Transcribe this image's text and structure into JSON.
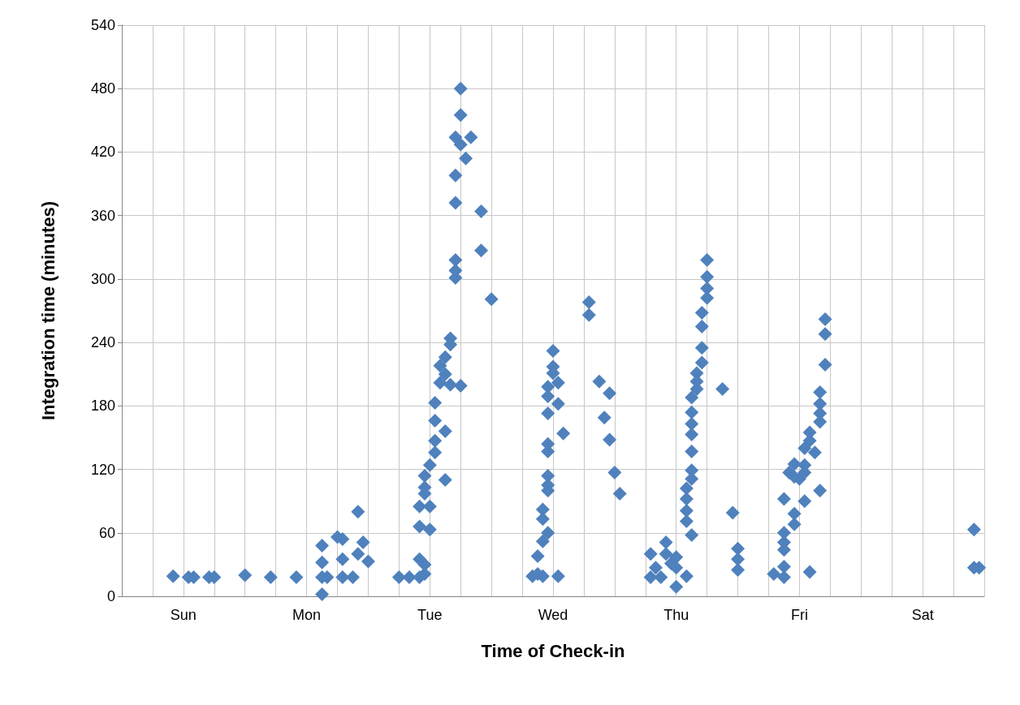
{
  "chart_data": {
    "type": "scatter",
    "xlabel": "Time of Check-in",
    "ylabel": "Integration time (minutes)",
    "color": "#4f81bd",
    "marker": "diamond",
    "grid": true,
    "ylim": [
      0,
      540
    ],
    "yticks": [
      0,
      60,
      120,
      180,
      240,
      300,
      360,
      420,
      480,
      540
    ],
    "categories": [
      null,
      null,
      null,
      null,
      null,
      null,
      null,
      null,
      null,
      null,
      null,
      null,
      "Sun",
      null,
      null,
      null,
      null,
      null,
      null,
      null,
      null,
      null,
      null,
      null,
      null,
      null,
      null,
      null,
      null,
      null,
      null,
      null,
      null,
      null,
      null,
      null,
      "Mon",
      null,
      null,
      null,
      null,
      null,
      null,
      null,
      null,
      null,
      null,
      null,
      null,
      null,
      null,
      null,
      null,
      null,
      null,
      null,
      null,
      null,
      null,
      null,
      "Tue",
      null,
      null,
      null,
      null,
      null,
      null,
      null,
      null,
      null,
      null,
      null,
      null,
      null,
      null,
      null,
      null,
      null,
      null,
      null,
      null,
      null,
      null,
      null,
      "Wed",
      null,
      null,
      null,
      null,
      null,
      null,
      null,
      null,
      null,
      null,
      null,
      null,
      null,
      null,
      null,
      null,
      null,
      null,
      null,
      null,
      null,
      null,
      null,
      "Thu",
      null,
      null,
      null,
      null,
      null,
      null,
      null,
      null,
      null,
      null,
      null,
      null,
      null,
      null,
      null,
      null,
      null,
      null,
      null,
      null,
      null,
      null,
      null,
      "Fri",
      null,
      null,
      null,
      null,
      null,
      null,
      null,
      null,
      null,
      null,
      null,
      null,
      null,
      null,
      null,
      null,
      null,
      null,
      null,
      null,
      null,
      null,
      null,
      "Sat",
      null,
      null,
      null,
      null,
      null,
      null,
      null,
      null,
      null,
      null,
      null,
      null
    ],
    "series": [
      {
        "values": [
          null,
          null,
          null,
          null,
          null,
          null,
          null,
          null,
          null,
          null,
          19,
          null,
          null,
          18,
          18,
          null,
          null,
          18,
          18,
          null,
          null,
          null,
          null,
          null,
          20,
          null,
          null,
          null,
          null,
          18,
          null,
          null,
          null,
          null,
          18,
          null,
          null,
          null,
          null,
          48,
          18,
          null,
          56,
          54,
          null,
          18,
          80,
          51,
          33,
          null,
          null,
          null,
          null,
          null,
          18,
          null,
          18,
          null,
          85,
          114,
          124,
          183,
          218,
          226,
          244,
          434,
          480,
          414,
          434,
          null,
          364,
          null,
          281,
          null,
          null,
          null,
          null,
          null,
          null,
          null,
          19,
          38,
          82,
          198,
          232,
          202,
          154,
          null,
          null,
          null,
          null,
          278,
          null,
          203,
          169,
          192,
          117,
          97,
          null,
          null,
          null,
          null,
          null,
          40,
          27,
          18,
          51,
          31,
          37,
          null,
          102,
          188,
          211,
          268,
          318,
          null,
          null,
          196,
          null,
          79,
          45,
          null,
          null,
          null,
          null,
          null,
          null,
          21,
          null,
          92,
          117,
          125,
          111,
          140,
          155,
          136,
          193,
          262,
          null,
          null,
          null,
          null,
          null,
          null,
          null,
          null,
          null,
          null,
          null,
          null,
          null,
          null,
          null,
          null,
          null,
          null,
          null,
          null,
          null,
          null,
          null,
          null,
          null,
          null,
          null,
          null,
          63,
          27,
          null
        ]
      },
      {
        "values": [
          null,
          null,
          null,
          null,
          null,
          null,
          null,
          null,
          null,
          null,
          null,
          null,
          null,
          null,
          null,
          null,
          null,
          null,
          null,
          null,
          null,
          null,
          null,
          null,
          null,
          null,
          null,
          null,
          null,
          null,
          null,
          null,
          null,
          null,
          null,
          null,
          null,
          null,
          null,
          32,
          null,
          null,
          null,
          35,
          null,
          null,
          40,
          null,
          null,
          null,
          null,
          null,
          null,
          null,
          null,
          null,
          null,
          null,
          66,
          103,
          85,
          166,
          202,
          210,
          238,
          398,
          455,
          null,
          null,
          null,
          327,
          null,
          null,
          null,
          null,
          null,
          null,
          null,
          null,
          null,
          null,
          21,
          73,
          189,
          217,
          182,
          null,
          null,
          null,
          null,
          null,
          266,
          null,
          null,
          null,
          148,
          null,
          null,
          null,
          null,
          null,
          null,
          null,
          18,
          null,
          null,
          40,
          null,
          27,
          null,
          92,
          174,
          203,
          255,
          302,
          null,
          null,
          null,
          null,
          null,
          35,
          null,
          null,
          null,
          null,
          null,
          null,
          null,
          null,
          60,
          null,
          113,
          null,
          124,
          147,
          null,
          182,
          248,
          null,
          null,
          null,
          null,
          null,
          null,
          null,
          null,
          null,
          null,
          null,
          null,
          null,
          null,
          null,
          null,
          null,
          null,
          null,
          null,
          null,
          null,
          null,
          null,
          null,
          null,
          null,
          null,
          27,
          null,
          null
        ]
      },
      {
        "values": [
          null,
          null,
          null,
          null,
          null,
          null,
          null,
          null,
          null,
          null,
          null,
          null,
          null,
          null,
          null,
          null,
          null,
          null,
          null,
          null,
          null,
          null,
          null,
          null,
          null,
          null,
          null,
          null,
          null,
          null,
          null,
          null,
          null,
          null,
          null,
          null,
          null,
          null,
          null,
          18,
          null,
          null,
          null,
          18,
          null,
          null,
          null,
          null,
          null,
          null,
          null,
          null,
          null,
          null,
          null,
          null,
          null,
          null,
          35,
          97,
          63,
          147,
          null,
          156,
          200,
          372,
          427,
          null,
          null,
          null,
          null,
          null,
          null,
          null,
          null,
          null,
          null,
          null,
          null,
          null,
          null,
          null,
          52,
          173,
          211,
          19,
          null,
          null,
          null,
          null,
          null,
          null,
          null,
          null,
          null,
          null,
          null,
          null,
          null,
          null,
          null,
          null,
          null,
          null,
          null,
          null,
          null,
          null,
          9,
          null,
          81,
          163,
          196,
          235,
          291,
          null,
          null,
          null,
          null,
          null,
          25,
          null,
          null,
          null,
          null,
          null,
          null,
          null,
          null,
          51,
          null,
          78,
          null,
          117,
          23,
          null,
          173,
          219,
          null,
          null,
          null,
          null,
          null,
          null,
          null,
          null,
          null,
          null,
          null,
          null,
          null,
          null,
          null,
          null,
          null,
          null,
          null,
          null,
          null,
          null,
          null,
          null,
          null,
          null,
          null,
          null,
          null,
          null,
          null
        ]
      },
      {
        "values": [
          null,
          null,
          null,
          null,
          null,
          null,
          null,
          null,
          null,
          null,
          null,
          null,
          null,
          null,
          null,
          null,
          null,
          null,
          null,
          null,
          null,
          null,
          null,
          null,
          null,
          null,
          null,
          null,
          null,
          null,
          null,
          null,
          null,
          null,
          null,
          null,
          null,
          null,
          null,
          2,
          null,
          null,
          null,
          null,
          null,
          null,
          null,
          null,
          null,
          null,
          null,
          null,
          null,
          null,
          null,
          null,
          null,
          null,
          18,
          30,
          null,
          136,
          null,
          110,
          null,
          318,
          199,
          null,
          null,
          null,
          null,
          null,
          null,
          null,
          null,
          null,
          null,
          null,
          null,
          null,
          null,
          null,
          19,
          144,
          null,
          null,
          null,
          null,
          null,
          null,
          null,
          null,
          null,
          null,
          null,
          null,
          null,
          null,
          null,
          null,
          null,
          null,
          null,
          null,
          null,
          null,
          null,
          null,
          null,
          null,
          71,
          153,
          null,
          221,
          282,
          null,
          null,
          null,
          null,
          null,
          null,
          null,
          null,
          null,
          null,
          null,
          null,
          null,
          null,
          44,
          null,
          68,
          null,
          90,
          null,
          null,
          165,
          null,
          null,
          null,
          null,
          null,
          null,
          null,
          null,
          null,
          null,
          null,
          null,
          null,
          null,
          null,
          null,
          null,
          null,
          null,
          null,
          null,
          null,
          null,
          null,
          null,
          null,
          null,
          null,
          null,
          null,
          null,
          null
        ]
      },
      {
        "values": [
          null,
          null,
          null,
          null,
          null,
          null,
          null,
          null,
          null,
          null,
          null,
          null,
          null,
          null,
          null,
          null,
          null,
          null,
          null,
          null,
          null,
          null,
          null,
          null,
          null,
          null,
          null,
          null,
          null,
          null,
          null,
          null,
          null,
          null,
          null,
          null,
          null,
          null,
          null,
          null,
          null,
          null,
          null,
          null,
          null,
          null,
          null,
          null,
          null,
          null,
          null,
          null,
          null,
          null,
          null,
          null,
          null,
          null,
          null,
          21,
          null,
          null,
          null,
          null,
          null,
          308,
          null,
          null,
          null,
          null,
          null,
          null,
          null,
          null,
          null,
          null,
          null,
          null,
          null,
          null,
          null,
          null,
          null,
          137,
          null,
          null,
          null,
          null,
          null,
          null,
          null,
          null,
          null,
          null,
          null,
          null,
          null,
          null,
          null,
          null,
          null,
          null,
          null,
          null,
          null,
          null,
          null,
          null,
          null,
          null,
          19,
          137,
          null,
          null,
          null,
          null,
          null,
          null,
          null,
          null,
          null,
          null,
          null,
          null,
          null,
          null,
          null,
          null,
          null,
          28,
          null,
          null,
          null,
          null,
          null,
          null,
          100,
          null,
          null,
          null,
          null,
          null,
          null,
          null,
          null,
          null,
          null,
          null,
          null,
          null,
          null,
          null,
          null,
          null,
          null,
          null,
          null,
          null,
          null,
          null,
          null,
          null,
          null,
          null,
          null,
          null,
          null,
          null,
          null
        ]
      },
      {
        "values": [
          null,
          null,
          null,
          null,
          null,
          null,
          null,
          null,
          null,
          null,
          null,
          null,
          null,
          null,
          null,
          null,
          null,
          null,
          null,
          null,
          null,
          null,
          null,
          null,
          null,
          null,
          null,
          null,
          null,
          null,
          null,
          null,
          null,
          null,
          null,
          null,
          null,
          null,
          null,
          null,
          null,
          null,
          null,
          null,
          null,
          null,
          null,
          null,
          null,
          null,
          null,
          null,
          null,
          null,
          null,
          null,
          null,
          null,
          null,
          null,
          null,
          null,
          null,
          null,
          null,
          301,
          null,
          null,
          null,
          null,
          null,
          null,
          null,
          null,
          null,
          null,
          null,
          null,
          null,
          null,
          null,
          null,
          null,
          114,
          null,
          null,
          null,
          null,
          null,
          null,
          null,
          null,
          null,
          null,
          null,
          null,
          null,
          null,
          null,
          null,
          null,
          null,
          null,
          null,
          null,
          null,
          null,
          null,
          null,
          null,
          null,
          119,
          null,
          null,
          null,
          null,
          null,
          null,
          null,
          null,
          null,
          null,
          null,
          null,
          null,
          null,
          null,
          null,
          null,
          18,
          null,
          null,
          null,
          null,
          null,
          null,
          null,
          null,
          null,
          null,
          null,
          null,
          null,
          null,
          null,
          null,
          null,
          null,
          null,
          null,
          null,
          null,
          null,
          null,
          null,
          null,
          null,
          null,
          null,
          null,
          null,
          null,
          null,
          null,
          null,
          null,
          null,
          null,
          null
        ]
      },
      {
        "values": [
          null,
          null,
          null,
          null,
          null,
          null,
          null,
          null,
          null,
          null,
          null,
          null,
          null,
          null,
          null,
          null,
          null,
          null,
          null,
          null,
          null,
          null,
          null,
          null,
          null,
          null,
          null,
          null,
          null,
          null,
          null,
          null,
          null,
          null,
          null,
          null,
          null,
          null,
          null,
          null,
          null,
          null,
          null,
          null,
          null,
          null,
          null,
          null,
          null,
          null,
          null,
          null,
          null,
          null,
          null,
          null,
          null,
          null,
          null,
          null,
          null,
          null,
          null,
          null,
          null,
          null,
          null,
          null,
          null,
          null,
          null,
          null,
          null,
          null,
          null,
          null,
          null,
          null,
          null,
          null,
          null,
          null,
          null,
          105,
          null,
          null,
          null,
          null,
          null,
          null,
          null,
          null,
          null,
          null,
          null,
          null,
          null,
          null,
          null,
          null,
          null,
          null,
          null,
          null,
          null,
          null,
          null,
          null,
          null,
          null,
          null,
          111,
          null,
          null,
          null,
          null,
          null,
          null,
          null,
          null,
          null,
          null,
          null,
          null,
          null,
          null,
          null,
          null,
          null,
          null,
          null,
          null,
          null,
          null,
          null,
          null,
          null,
          null,
          null,
          null,
          null,
          null,
          null,
          null,
          null,
          null,
          null,
          null,
          null,
          null,
          null,
          null,
          null,
          null,
          null,
          null,
          null,
          null,
          null,
          null,
          null,
          null,
          null,
          null,
          null,
          null,
          null,
          null,
          null
        ]
      },
      {
        "values": [
          null,
          null,
          null,
          null,
          null,
          null,
          null,
          null,
          null,
          null,
          null,
          null,
          null,
          null,
          null,
          null,
          null,
          null,
          null,
          null,
          null,
          null,
          null,
          null,
          null,
          null,
          null,
          null,
          null,
          null,
          null,
          null,
          null,
          null,
          null,
          null,
          null,
          null,
          null,
          null,
          null,
          null,
          null,
          null,
          null,
          null,
          null,
          null,
          null,
          null,
          null,
          null,
          null,
          null,
          null,
          null,
          null,
          null,
          null,
          null,
          null,
          null,
          null,
          null,
          null,
          null,
          null,
          null,
          null,
          null,
          null,
          null,
          null,
          null,
          null,
          null,
          null,
          null,
          null,
          null,
          null,
          null,
          null,
          100,
          null,
          null,
          null,
          null,
          null,
          null,
          null,
          null,
          null,
          null,
          null,
          null,
          null,
          null,
          null,
          null,
          null,
          null,
          null,
          null,
          null,
          null,
          null,
          null,
          null,
          null,
          null,
          58,
          null,
          null,
          null,
          null,
          null,
          null,
          null,
          null,
          null,
          null,
          null,
          null,
          null,
          null,
          null,
          null,
          null,
          null,
          null,
          null,
          null,
          null,
          null,
          null,
          null,
          null,
          null,
          null,
          null,
          null,
          null,
          null,
          null,
          null,
          null,
          null,
          null,
          null,
          null,
          null,
          null,
          null,
          null,
          null,
          null,
          null,
          null,
          null,
          null,
          null,
          null,
          null,
          null,
          null,
          null,
          null,
          null
        ]
      },
      {
        "values": [
          null,
          null,
          null,
          null,
          null,
          null,
          null,
          null,
          null,
          null,
          null,
          null,
          null,
          null,
          null,
          null,
          null,
          null,
          null,
          null,
          null,
          null,
          null,
          null,
          null,
          null,
          null,
          null,
          null,
          null,
          null,
          null,
          null,
          null,
          null,
          null,
          null,
          null,
          null,
          null,
          null,
          null,
          null,
          null,
          null,
          null,
          null,
          null,
          null,
          null,
          null,
          null,
          null,
          null,
          null,
          null,
          null,
          null,
          null,
          null,
          null,
          null,
          null,
          null,
          null,
          null,
          null,
          null,
          null,
          null,
          null,
          null,
          null,
          null,
          null,
          null,
          null,
          null,
          null,
          null,
          null,
          null,
          null,
          60,
          null,
          null,
          null,
          null,
          null,
          null,
          null,
          null,
          null,
          null,
          null,
          null,
          null,
          null,
          null,
          null,
          null,
          null,
          null,
          null,
          null,
          null,
          null,
          null,
          null,
          null,
          null,
          null,
          null,
          null,
          null,
          null,
          null,
          null,
          null,
          null,
          null,
          null,
          null,
          null,
          null,
          null,
          null,
          null,
          null,
          null,
          null,
          null,
          null,
          null,
          null,
          null,
          null,
          null,
          null,
          null,
          null,
          null,
          null,
          null,
          null,
          null,
          null,
          null,
          null,
          null,
          null,
          null,
          null,
          null,
          null,
          null,
          null,
          null,
          null,
          null,
          null,
          null,
          null,
          null,
          null,
          null,
          null,
          null,
          null
        ]
      }
    ]
  }
}
